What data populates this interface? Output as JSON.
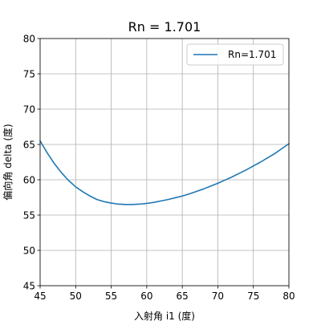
{
  "chart_data": {
    "type": "line",
    "title": "Rn = 1.701",
    "xlabel": "入射角 i1 (度)",
    "ylabel": "偏向角 delta (度)",
    "xlim": [
      45,
      80
    ],
    "ylim": [
      45,
      80
    ],
    "xticks": [
      45,
      50,
      55,
      60,
      65,
      70,
      75,
      80
    ],
    "yticks": [
      45,
      50,
      55,
      60,
      65,
      70,
      75,
      80
    ],
    "grid": true,
    "legend_position": "top-right",
    "series": [
      {
        "name": "Rn=1.701",
        "color": "#1f77b4",
        "x": [
          45,
          46,
          47,
          48,
          49,
          50,
          51,
          52,
          53,
          54,
          55,
          56,
          57,
          58,
          59,
          60,
          61,
          62,
          63,
          64,
          65,
          66,
          67,
          68,
          69,
          70,
          71,
          72,
          73,
          74,
          75,
          76,
          77,
          78,
          79,
          80
        ],
        "y": [
          65.5,
          63.8,
          62.3,
          61.0,
          59.9,
          59.0,
          58.3,
          57.7,
          57.2,
          56.9,
          56.7,
          56.55,
          56.5,
          56.5,
          56.55,
          56.65,
          56.8,
          57.0,
          57.2,
          57.45,
          57.7,
          58.0,
          58.35,
          58.7,
          59.1,
          59.5,
          59.95,
          60.4,
          60.9,
          61.4,
          61.95,
          62.5,
          63.1,
          63.7,
          64.4,
          65.1
        ]
      }
    ]
  }
}
